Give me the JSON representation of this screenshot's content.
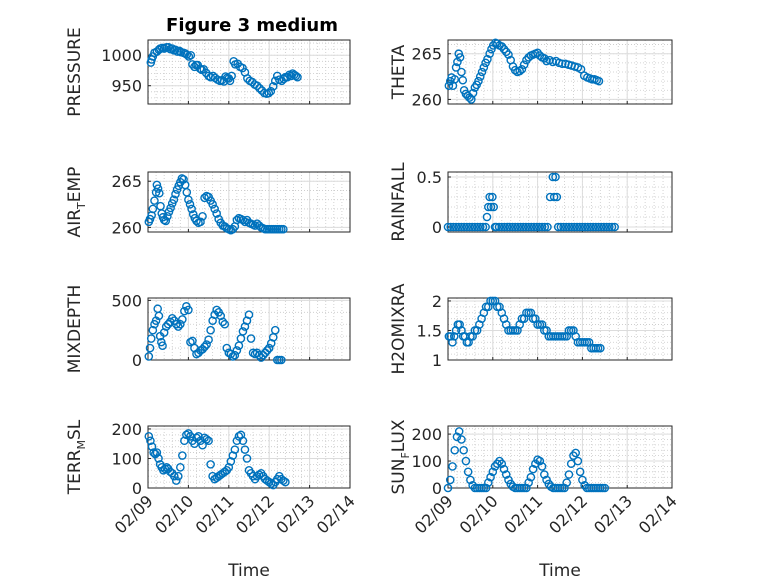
{
  "figure": {
    "title": "Figure 3 medium",
    "marker_color": "#0072BD"
  },
  "chart_data": [
    {
      "type": "scatter",
      "name": "PRESSURE",
      "ylabel": "PRESSURE",
      "ylabel_main": "PRESSURE",
      "ylabel_sub": "",
      "ylabel_tail": "",
      "xlabel": "",
      "ylim": [
        920,
        1025
      ],
      "yticks": [
        950,
        1000
      ],
      "xlim": [
        0,
        5
      ],
      "xticks": [
        0,
        1,
        2,
        3,
        4,
        5
      ],
      "xticklabels": [],
      "grid": true,
      "minor_grid": true,
      "x": [
        0.07,
        0.09,
        0.12,
        0.16,
        0.22,
        0.27,
        0.3,
        0.35,
        0.4,
        0.46,
        0.51,
        0.55,
        0.6,
        0.64,
        0.68,
        0.73,
        0.78,
        0.82,
        0.88,
        0.92,
        0.96,
        1.01,
        1.06,
        1.1,
        1.15,
        1.19,
        1.23,
        1.29,
        1.33,
        1.38,
        1.44,
        1.5,
        1.55,
        1.61,
        1.66,
        1.72,
        1.78,
        1.83,
        1.88,
        1.92,
        1.96,
        2,
        2.03,
        2.07,
        2.12,
        2.16,
        2.22,
        2.28,
        2.34,
        2.4,
        2.46,
        2.52,
        2.58,
        2.64,
        2.7,
        2.76,
        2.82,
        2.88,
        2.94,
        2.99,
        3.04,
        3.1,
        3.15,
        3.2,
        3.25,
        3.31,
        3.36,
        3.4,
        3.45,
        3.5,
        3.54,
        3.58,
        3.62,
        3.66,
        3.7
      ],
      "y": [
        988,
        993,
        998,
        1004,
        1006,
        1009,
        1011,
        1012,
        1011,
        1013,
        1013,
        1010,
        1011,
        1008,
        1009,
        1006,
        1007,
        1005,
        1004,
        1003,
        1001,
        998,
        1000,
        985,
        981,
        984,
        984,
        978,
        976,
        977,
        971,
        966,
        964,
        966,
        963,
        960,
        958,
        959,
        957,
        965,
        963,
        962,
        958,
        966,
        990,
        985,
        986,
        981,
        979,
        972,
        962,
        958,
        956,
        952,
        950,
        946,
        942,
        938,
        937,
        938,
        941,
        949,
        958,
        966,
        960,
        958,
        961,
        964,
        964,
        968,
        966,
        970,
        968,
        966,
        964
      ]
    },
    {
      "type": "scatter",
      "name": "THETA",
      "ylabel": "THETA",
      "ylabel_main": "THETA",
      "ylabel_sub": "",
      "ylabel_tail": "",
      "xlabel": "",
      "ylim": [
        259.5,
        266.5
      ],
      "yticks": [
        260,
        265
      ],
      "xlim": [
        0,
        5
      ],
      "xticks": [
        0,
        1,
        2,
        3,
        4,
        5
      ],
      "xticklabels": [],
      "grid": true,
      "minor_grid": true,
      "x": [
        0.02,
        0.05,
        0.08,
        0.11,
        0.15,
        0.18,
        0.21,
        0.24,
        0.27,
        0.3,
        0.33,
        0.36,
        0.4,
        0.44,
        0.48,
        0.52,
        0.56,
        0.6,
        0.64,
        0.68,
        0.72,
        0.76,
        0.8,
        0.84,
        0.88,
        0.93,
        0.97,
        1.01,
        1.06,
        1.1,
        1.15,
        1.2,
        1.25,
        1.3,
        1.35,
        1.4,
        1.45,
        1.5,
        1.55,
        1.6,
        1.65,
        1.7,
        1.75,
        1.8,
        1.85,
        1.9,
        1.95,
        2,
        2.05,
        2.1,
        2.15,
        2.2,
        2.27,
        2.34,
        2.41,
        2.48,
        2.55,
        2.62,
        2.69,
        2.76,
        2.83,
        2.9,
        2.97,
        3.04,
        3.11,
        3.17,
        3.22,
        3.27,
        3.32,
        3.37
      ],
      "y": [
        261.5,
        262,
        262.4,
        261.5,
        262.2,
        263.5,
        264.1,
        265,
        264.6,
        263,
        262.1,
        261,
        260.6,
        260.4,
        260.2,
        260,
        260.7,
        261.3,
        261.6,
        262,
        262.5,
        263,
        263.5,
        264,
        264.4,
        265,
        265.5,
        265.9,
        266.2,
        266.1,
        265.9,
        265.8,
        265.5,
        265.2,
        264.9,
        264.3,
        263.6,
        263.2,
        263,
        263.1,
        263.3,
        263.8,
        264.3,
        264.6,
        264.8,
        264.9,
        265,
        265.1,
        264.8,
        264.6,
        264.5,
        264.2,
        264.3,
        264.1,
        264.2,
        264,
        263.9,
        263.9,
        263.8,
        263.7,
        263.6,
        263.5,
        263.3,
        262.6,
        262.4,
        262.3,
        262.2,
        262.2,
        262.1,
        262
      ]
    },
    {
      "type": "scatter",
      "name": "AIR_TEMP",
      "ylabel": "AIR_TEMP",
      "ylabel_main": "AIR",
      "ylabel_sub": "T",
      "ylabel_tail": "EMP",
      "xlabel": "",
      "ylim": [
        259.5,
        266
      ],
      "yticks": [
        260,
        265
      ],
      "xlim": [
        0,
        5
      ],
      "xticks": [
        0,
        1,
        2,
        3,
        4,
        5
      ],
      "xticklabels": [],
      "grid": true,
      "minor_grid": true,
      "x": [
        0.02,
        0.05,
        0.09,
        0.12,
        0.16,
        0.2,
        0.22,
        0.25,
        0.28,
        0.31,
        0.34,
        0.37,
        0.4,
        0.44,
        0.48,
        0.52,
        0.56,
        0.6,
        0.64,
        0.68,
        0.72,
        0.76,
        0.8,
        0.84,
        0.88,
        0.92,
        0.96,
        1,
        1.04,
        1.08,
        1.12,
        1.16,
        1.2,
        1.25,
        1.3,
        1.35,
        1.4,
        1.45,
        1.5,
        1.55,
        1.6,
        1.65,
        1.7,
        1.75,
        1.8,
        1.85,
        1.9,
        1.95,
        2,
        2.05,
        2.1,
        2.15,
        2.2,
        2.25,
        2.3,
        2.35,
        2.4,
        2.45,
        2.5,
        2.55,
        2.6,
        2.65,
        2.7,
        2.75,
        2.8,
        2.85,
        2.9,
        2.95,
        3,
        3.05,
        3.1,
        3.15,
        3.2,
        3.25,
        3.3,
        3.35
      ],
      "y": [
        260.6,
        260.9,
        261.3,
        262,
        262.9,
        263.8,
        264.6,
        264.2,
        263.7,
        262.3,
        261.5,
        261.1,
        260.8,
        260.7,
        261.2,
        261.7,
        262.1,
        262.6,
        263,
        263.6,
        264.1,
        264.5,
        264.9,
        265.3,
        265.2,
        264.6,
        263.8,
        263,
        262.5,
        262,
        261.4,
        261,
        260.7,
        260.5,
        260.6,
        261.2,
        263.2,
        263.4,
        263.3,
        262.9,
        262.5,
        262,
        261.5,
        260.9,
        260.5,
        260.2,
        260.1,
        259.9,
        259.8,
        259.7,
        259.8,
        260.1,
        260.8,
        261,
        260.9,
        260.8,
        260.6,
        260.8,
        260.5,
        260.4,
        260.3,
        260.2,
        260.4,
        260.2,
        260,
        259.9,
        259.8,
        259.8,
        259.8,
        259.8,
        259.8,
        259.8,
        259.8,
        259.8,
        259.8,
        259.8
      ]
    },
    {
      "type": "scatter",
      "name": "RAINFALL",
      "ylabel": "RAINFALL",
      "ylabel_main": "RAINFALL",
      "ylabel_sub": "",
      "ylabel_tail": "",
      "xlabel": "",
      "ylim": [
        -0.05,
        0.55
      ],
      "yticks": [
        0,
        0.5
      ],
      "xlim": [
        0,
        5
      ],
      "xticks": [
        0,
        1,
        2,
        3,
        4,
        5
      ],
      "xticklabels": [],
      "grid": true,
      "minor_grid": true,
      "x": [
        0,
        0.06,
        0.12,
        0.18,
        0.24,
        0.3,
        0.36,
        0.42,
        0.48,
        0.54,
        0.6,
        0.66,
        0.72,
        0.78,
        0.84,
        0.87,
        0.9,
        0.93,
        0.96,
        0.99,
        1.02,
        1.05,
        1.08,
        1.14,
        1.2,
        1.26,
        1.32,
        1.38,
        1.44,
        1.5,
        1.56,
        1.62,
        1.68,
        1.74,
        1.8,
        1.86,
        1.92,
        1.98,
        2.04,
        2.1,
        2.16,
        2.22,
        2.28,
        2.34,
        2.37,
        2.4,
        2.43,
        2.46,
        2.52,
        2.58,
        2.64,
        2.7,
        2.76,
        2.82,
        2.88,
        2.94,
        3,
        3.06,
        3.12,
        3.18,
        3.24,
        3.3,
        3.36,
        3.42,
        3.48,
        3.54,
        3.6,
        3.66,
        3.72
      ],
      "y": [
        0,
        0,
        0,
        0,
        0,
        0,
        0,
        0,
        0,
        0,
        0,
        0,
        0,
        0,
        0,
        0.1,
        0.2,
        0.3,
        0.2,
        0.3,
        0.2,
        0,
        0,
        0,
        0,
        0,
        0,
        0,
        0,
        0,
        0,
        0,
        0,
        0,
        0,
        0,
        0,
        0,
        0,
        0,
        0,
        0,
        0.3,
        0.5,
        0.3,
        0.5,
        0.3,
        0,
        0,
        0,
        0,
        0,
        0,
        0,
        0,
        0,
        0,
        0,
        0,
        0,
        0,
        0,
        0,
        0,
        0,
        0,
        0,
        0,
        0
      ]
    },
    {
      "type": "scatter",
      "name": "MIXDEPTH",
      "ylabel": "MIXDEPTH",
      "ylabel_main": "MIXDEPTH",
      "ylabel_sub": "",
      "ylabel_tail": "",
      "xlabel": "",
      "ylim": [
        0,
        520
      ],
      "yticks": [
        0,
        500
      ],
      "xlim": [
        0,
        5
      ],
      "xticks": [
        0,
        1,
        2,
        3,
        4,
        5
      ],
      "xticklabels": [],
      "grid": true,
      "minor_grid": true,
      "x": [
        0.02,
        0.05,
        0.08,
        0.12,
        0.16,
        0.2,
        0.24,
        0.27,
        0.3,
        0.33,
        0.36,
        0.4,
        0.45,
        0.5,
        0.55,
        0.6,
        0.65,
        0.7,
        0.75,
        0.8,
        0.85,
        0.9,
        0.95,
        1,
        1.05,
        1.1,
        1.15,
        1.2,
        1.25,
        1.3,
        1.35,
        1.4,
        1.45,
        1.5,
        1.55,
        1.6,
        1.65,
        1.7,
        1.75,
        1.8,
        1.85,
        1.9,
        1.95,
        2,
        2.05,
        2.1,
        2.15,
        2.2,
        2.25,
        2.3,
        2.35,
        2.4,
        2.45,
        2.5,
        2.55,
        2.6,
        2.65,
        2.7,
        2.75,
        2.8,
        2.85,
        2.9,
        2.95,
        3,
        3.05,
        3.1,
        3.15,
        3.2,
        3.25,
        3.3
      ],
      "y": [
        30,
        100,
        180,
        250,
        300,
        330,
        430,
        370,
        200,
        150,
        120,
        230,
        280,
        300,
        320,
        350,
        330,
        300,
        280,
        300,
        340,
        410,
        450,
        420,
        150,
        160,
        100,
        50,
        60,
        80,
        90,
        110,
        130,
        170,
        250,
        330,
        380,
        420,
        400,
        370,
        320,
        300,
        100,
        60,
        50,
        30,
        40,
        80,
        120,
        180,
        240,
        280,
        330,
        380,
        180,
        60,
        50,
        60,
        40,
        20,
        40,
        60,
        80,
        100,
        140,
        190,
        250,
        0,
        0,
        0
      ]
    },
    {
      "type": "scatter",
      "name": "H2OMIXRA",
      "ylabel": "H2OMIXRA",
      "ylabel_main": "H2OMIXRA",
      "ylabel_sub": "",
      "ylabel_tail": "",
      "xlabel": "",
      "ylim": [
        1,
        2.05
      ],
      "yticks": [
        1,
        1.5,
        2
      ],
      "xlim": [
        0,
        5
      ],
      "xticks": [
        0,
        1,
        2,
        3,
        4,
        5
      ],
      "xticklabels": [],
      "grid": true,
      "minor_grid": true,
      "x": [
        0.02,
        0.06,
        0.1,
        0.14,
        0.18,
        0.22,
        0.26,
        0.3,
        0.34,
        0.38,
        0.42,
        0.46,
        0.5,
        0.55,
        0.6,
        0.65,
        0.7,
        0.75,
        0.8,
        0.85,
        0.9,
        0.95,
        1,
        1.05,
        1.1,
        1.15,
        1.2,
        1.25,
        1.3,
        1.35,
        1.4,
        1.45,
        1.5,
        1.55,
        1.6,
        1.65,
        1.7,
        1.75,
        1.8,
        1.85,
        1.9,
        1.95,
        2,
        2.05,
        2.1,
        2.15,
        2.2,
        2.25,
        2.3,
        2.35,
        2.4,
        2.45,
        2.5,
        2.55,
        2.6,
        2.65,
        2.7,
        2.75,
        2.8,
        2.85,
        2.9,
        2.95,
        3,
        3.05,
        3.1,
        3.15,
        3.2,
        3.25,
        3.3,
        3.35,
        3.4
      ],
      "y": [
        1.4,
        1.4,
        1.3,
        1.4,
        1.5,
        1.6,
        1.6,
        1.5,
        1.4,
        1.4,
        1.3,
        1.3,
        1.4,
        1.4,
        1.5,
        1.5,
        1.6,
        1.7,
        1.8,
        1.9,
        1.9,
        2,
        2,
        2,
        1.9,
        1.9,
        1.8,
        1.7,
        1.6,
        1.5,
        1.5,
        1.5,
        1.5,
        1.5,
        1.6,
        1.7,
        1.7,
        1.8,
        1.8,
        1.8,
        1.7,
        1.7,
        1.6,
        1.6,
        1.6,
        1.5,
        1.5,
        1.4,
        1.4,
        1.4,
        1.4,
        1.4,
        1.4,
        1.4,
        1.4,
        1.4,
        1.5,
        1.5,
        1.5,
        1.4,
        1.3,
        1.3,
        1.3,
        1.3,
        1.3,
        1.3,
        1.2,
        1.2,
        1.2,
        1.2,
        1.2
      ]
    },
    {
      "type": "scatter",
      "name": "TERR_MSL",
      "ylabel": "TERR_MSL",
      "ylabel_main": "TERR",
      "ylabel_sub": "M",
      "ylabel_tail": "SL",
      "xlabel": "Time",
      "ylim": [
        0,
        210
      ],
      "yticks": [
        0,
        100,
        200
      ],
      "xlim": [
        0,
        5
      ],
      "xticks": [
        0,
        1,
        2,
        3,
        4,
        5
      ],
      "xticklabels": [
        "02/09",
        "02/10",
        "02/11",
        "02/12",
        "02/13",
        "02/14"
      ],
      "grid": true,
      "minor_grid": true,
      "x": [
        0.02,
        0.06,
        0.1,
        0.14,
        0.18,
        0.22,
        0.26,
        0.3,
        0.34,
        0.38,
        0.42,
        0.46,
        0.5,
        0.55,
        0.6,
        0.65,
        0.7,
        0.75,
        0.8,
        0.85,
        0.9,
        0.95,
        1,
        1.05,
        1.1,
        1.15,
        1.2,
        1.25,
        1.3,
        1.35,
        1.4,
        1.45,
        1.5,
        1.55,
        1.6,
        1.65,
        1.7,
        1.75,
        1.8,
        1.85,
        1.9,
        1.95,
        2,
        2.05,
        2.1,
        2.15,
        2.2,
        2.25,
        2.3,
        2.35,
        2.4,
        2.45,
        2.5,
        2.55,
        2.6,
        2.65,
        2.7,
        2.75,
        2.8,
        2.85,
        2.9,
        2.95,
        3,
        3.05,
        3.1,
        3.15,
        3.2,
        3.25,
        3.3,
        3.35,
        3.4
      ],
      "y": [
        175,
        160,
        140,
        120,
        115,
        120,
        100,
        80,
        70,
        60,
        65,
        70,
        65,
        55,
        50,
        40,
        25,
        40,
        70,
        110,
        160,
        180,
        185,
        175,
        160,
        150,
        170,
        175,
        160,
        145,
        170,
        165,
        160,
        80,
        40,
        30,
        35,
        40,
        45,
        50,
        55,
        60,
        70,
        90,
        110,
        130,
        160,
        175,
        180,
        160,
        130,
        100,
        60,
        50,
        40,
        30,
        40,
        45,
        50,
        40,
        30,
        25,
        20,
        15,
        10,
        20,
        30,
        40,
        30,
        25,
        20
      ]
    },
    {
      "type": "scatter",
      "name": "SUN_FLUX",
      "ylabel": "SUN_FLUX",
      "ylabel_main": "SUN",
      "ylabel_sub": "F",
      "ylabel_tail": "LUX",
      "xlabel": "Time",
      "ylim": [
        0,
        230
      ],
      "yticks": [
        0,
        100,
        200
      ],
      "xlim": [
        0,
        5
      ],
      "xticks": [
        0,
        1,
        2,
        3,
        4,
        5
      ],
      "xticklabels": [
        "02/09",
        "02/10",
        "02/11",
        "02/12",
        "02/13",
        "02/14"
      ],
      "grid": true,
      "minor_grid": true,
      "x": [
        0,
        0.05,
        0.1,
        0.15,
        0.2,
        0.25,
        0.3,
        0.35,
        0.4,
        0.45,
        0.5,
        0.55,
        0.6,
        0.65,
        0.7,
        0.75,
        0.8,
        0.85,
        0.9,
        0.95,
        1,
        1.05,
        1.1,
        1.15,
        1.2,
        1.25,
        1.3,
        1.35,
        1.4,
        1.45,
        1.5,
        1.55,
        1.6,
        1.65,
        1.7,
        1.75,
        1.8,
        1.85,
        1.9,
        1.95,
        2,
        2.05,
        2.1,
        2.15,
        2.2,
        2.25,
        2.3,
        2.35,
        2.4,
        2.45,
        2.5,
        2.55,
        2.6,
        2.65,
        2.7,
        2.75,
        2.8,
        2.85,
        2.9,
        2.95,
        3,
        3.05,
        3.1,
        3.15,
        3.2,
        3.25,
        3.3,
        3.35,
        3.4,
        3.45,
        3.5
      ],
      "y": [
        0,
        30,
        80,
        140,
        190,
        210,
        180,
        140,
        100,
        60,
        30,
        10,
        0,
        0,
        0,
        0,
        0,
        0,
        20,
        40,
        60,
        80,
        90,
        100,
        90,
        70,
        50,
        30,
        15,
        5,
        0,
        0,
        0,
        0,
        0,
        0,
        20,
        40,
        70,
        90,
        105,
        100,
        80,
        50,
        30,
        15,
        5,
        0,
        0,
        0,
        0,
        0,
        0,
        20,
        50,
        90,
        120,
        130,
        100,
        60,
        30,
        10,
        0,
        0,
        0,
        0,
        0,
        0,
        0,
        0,
        0
      ]
    }
  ]
}
